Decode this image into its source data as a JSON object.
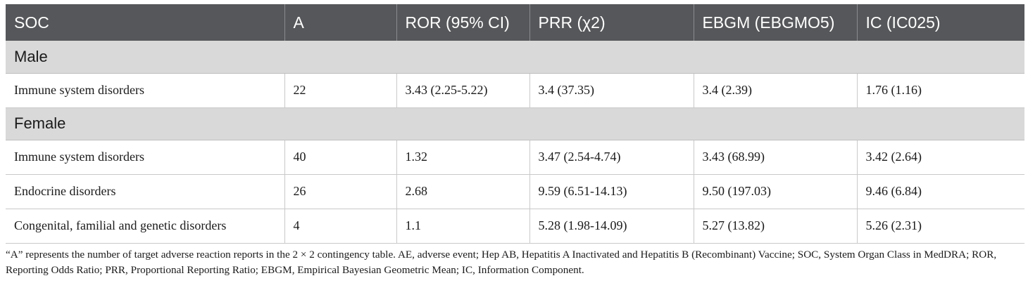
{
  "table": {
    "headers": [
      "SOC",
      "A",
      "ROR (95% CI)",
      "PRR (χ2)",
      "EBGM (EBGMO5)",
      "IC (IC025)"
    ],
    "groups": [
      {
        "label": "Male",
        "rows": [
          [
            "Immune system disorders",
            "22",
            "3.43 (2.25-5.22)",
            "3.4 (37.35)",
            "3.4 (2.39)",
            "1.76 (1.16)"
          ]
        ]
      },
      {
        "label": "Female",
        "rows": [
          [
            "Immune system disorders",
            "40",
            "1.32",
            "3.47 (2.54-4.74)",
            "3.43 (68.99)",
            "3.42 (2.64)"
          ],
          [
            "Endocrine disorders",
            "26",
            "2.68",
            "9.59 (6.51-14.13)",
            "9.50 (197.03)",
            "9.46 (6.84)"
          ],
          [
            "Congenital, familial and genetic disorders",
            "4",
            "1.1",
            "5.28 (1.98-14.09)",
            "5.27 (13.82)",
            "5.26 (2.31)"
          ]
        ]
      }
    ]
  },
  "footnote": "“A” represents the number of target adverse reaction reports in the 2 × 2 contingency table. AE, adverse event; Hep AB, Hepatitis A Inactivated and Hepatitis B (Recombinant) Vaccine; SOC, System Organ Class in MedDRA; ROR, Reporting Odds Ratio; PRR, Proportional Reporting Ratio; EBGM, Empirical Bayesian Geometric Mean; IC, Information Component."
}
